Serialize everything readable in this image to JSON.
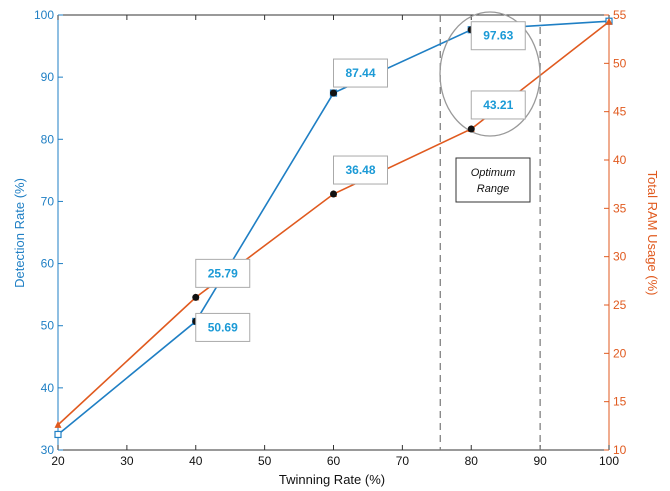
{
  "chart_data": {
    "type": "line",
    "xlabel": "Twinning Rate (%)",
    "ylabel_left": "Detection Rate (%)",
    "ylabel_right": "Total RAM Usage (%)",
    "xlim": [
      20,
      100
    ],
    "ylim_left": [
      30,
      100
    ],
    "ylim_right": [
      10,
      55
    ],
    "x_ticks": [
      20,
      30,
      40,
      50,
      60,
      70,
      80,
      90,
      100
    ],
    "y_left_ticks": [
      30,
      40,
      50,
      60,
      70,
      80,
      90,
      100
    ],
    "y_right_ticks": [
      10,
      15,
      20,
      25,
      30,
      35,
      40,
      45,
      50,
      55
    ],
    "series": [
      {
        "axis": "left",
        "color": "#1f7fc4",
        "x": [
          20,
          40,
          60,
          80,
          100
        ],
        "values": [
          32.5,
          50.69,
          87.44,
          97.63,
          99.0
        ]
      },
      {
        "axis": "right",
        "color": "#e05a1f",
        "x": [
          20,
          40,
          60,
          80,
          100
        ],
        "values": [
          12.6,
          25.79,
          36.48,
          43.21,
          54.3
        ]
      }
    ],
    "data_labels": [
      {
        "text": "50.69",
        "series": 0,
        "index": 1
      },
      {
        "text": "87.44",
        "series": 0,
        "index": 2
      },
      {
        "text": "97.63",
        "series": 0,
        "index": 3
      },
      {
        "text": "25.79",
        "series": 1,
        "index": 1
      },
      {
        "text": "36.48",
        "series": 1,
        "index": 2
      },
      {
        "text": "43.21",
        "series": 1,
        "index": 3
      }
    ],
    "optimum_range": {
      "x_start": 75.5,
      "x_end": 90,
      "label_line1": "Optimum",
      "label_line2": "Range"
    },
    "grid": false,
    "left_axis_color": "#1f7fc4",
    "right_axis_color": "#e05a1f"
  }
}
